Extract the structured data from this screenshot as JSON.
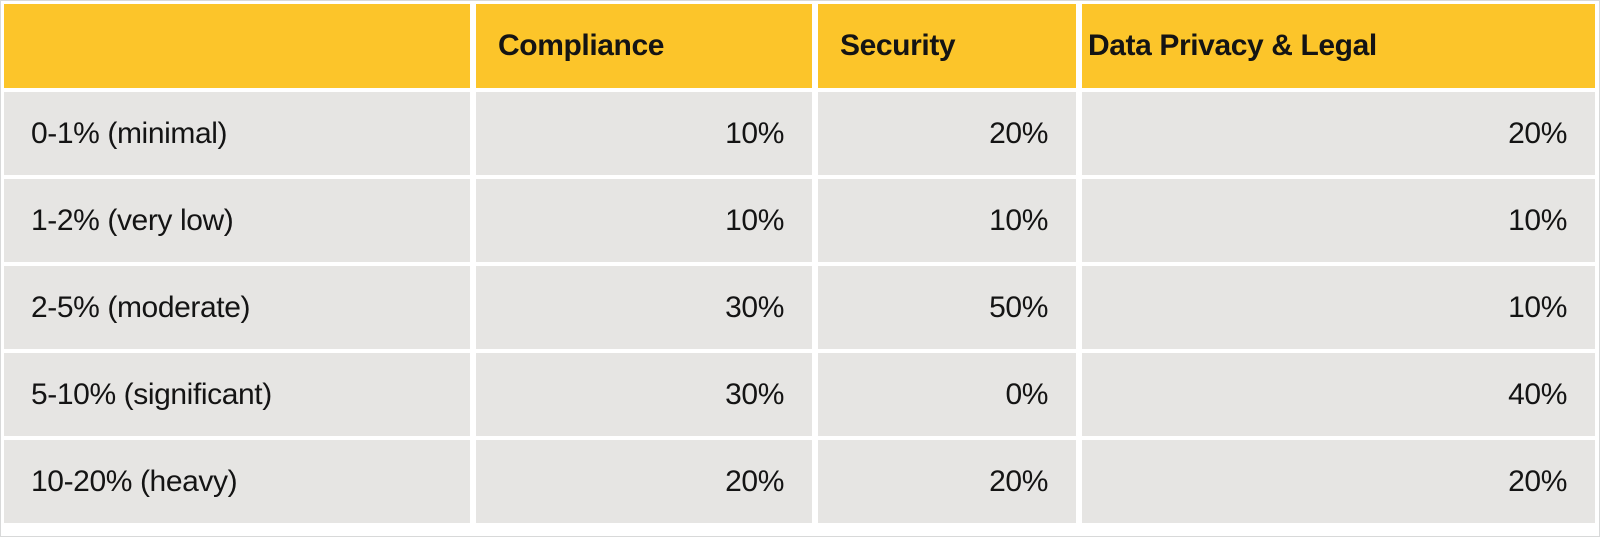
{
  "table": {
    "colors": {
      "header_bg": "#FCC52A",
      "row_bg": "#E6E5E3",
      "gap": "#FFFFFF",
      "text": "#141414"
    },
    "columns": [
      {
        "label": ""
      },
      {
        "label": "Compliance"
      },
      {
        "label": "Security"
      },
      {
        "label": "Data Privacy & Legal"
      }
    ],
    "rows": [
      {
        "label": "0-1% (minimal)",
        "values": [
          "10%",
          "20%",
          "20%"
        ]
      },
      {
        "label": "1-2% (very low)",
        "values": [
          "10%",
          "10%",
          "10%"
        ]
      },
      {
        "label": "2-5% (moderate)",
        "values": [
          "30%",
          "50%",
          "10%"
        ]
      },
      {
        "label": "5-10% (significant)",
        "values": [
          "30%",
          "0%",
          "40%"
        ]
      },
      {
        "label": "10-20% (heavy)",
        "values": [
          "20%",
          "20%",
          "20%"
        ]
      }
    ]
  },
  "chart_data": {
    "type": "table",
    "title": "",
    "columns": [
      "",
      "Compliance",
      "Security",
      "Data Privacy & Legal"
    ],
    "rows": [
      [
        "0-1% (minimal)",
        "10%",
        "20%",
        "20%"
      ],
      [
        "1-2% (very low)",
        "10%",
        "10%",
        "10%"
      ],
      [
        "2-5% (moderate)",
        "30%",
        "50%",
        "10%"
      ],
      [
        "5-10% (significant)",
        "30%",
        "0%",
        "40%"
      ],
      [
        "10-20% (heavy)",
        "20%",
        "20%",
        "20%"
      ]
    ]
  }
}
